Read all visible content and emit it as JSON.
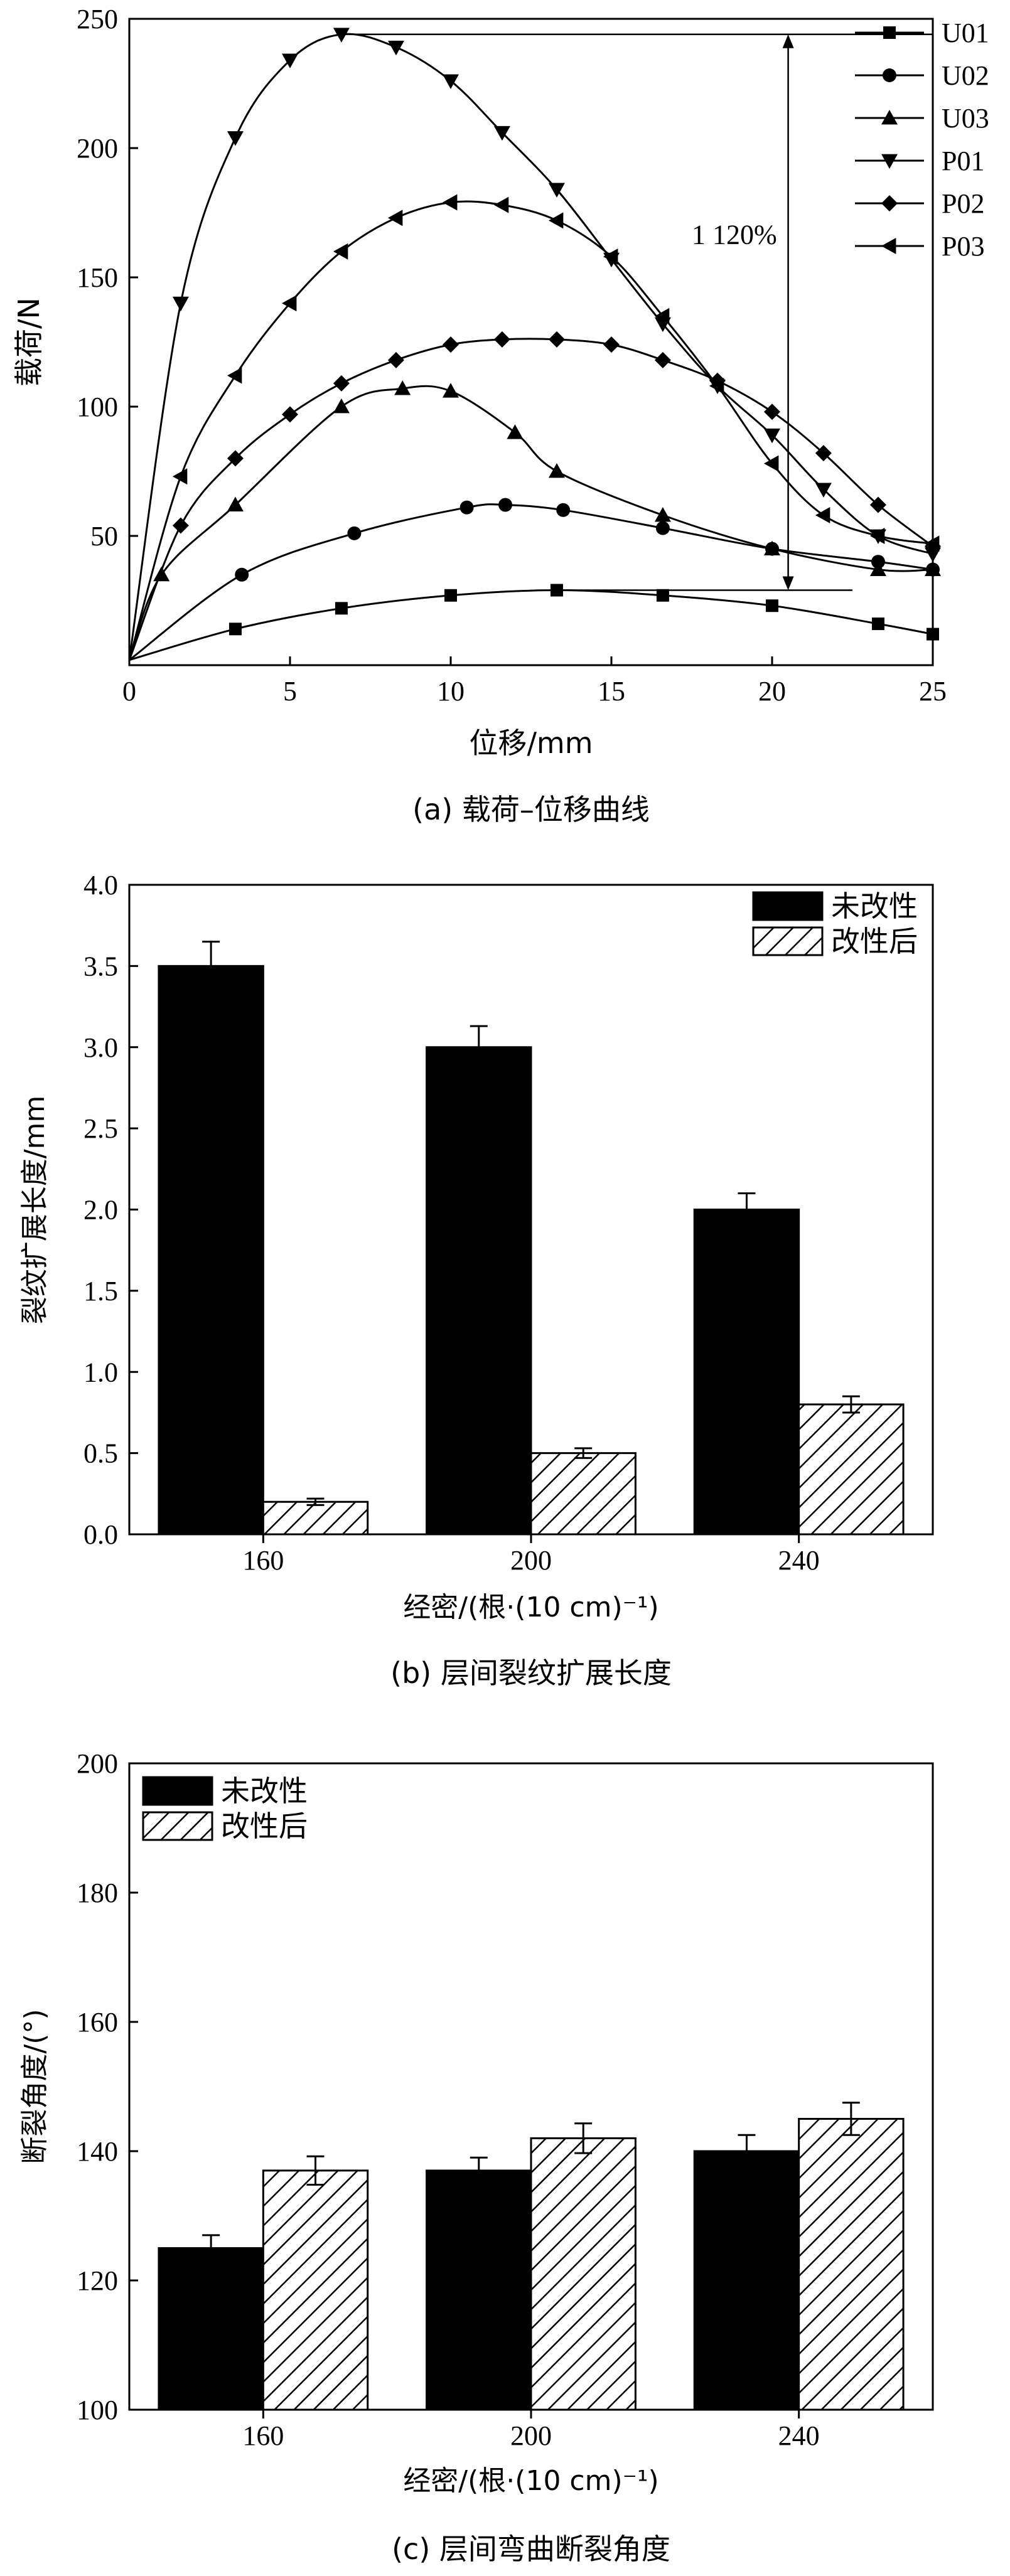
{
  "chart_data": [
    {
      "type": "line",
      "caption": "(a) 载荷–位移曲线",
      "xlabel": "位移/mm",
      "ylabel": "载荷/N",
      "xlim": [
        0,
        25
      ],
      "ylim": [
        0,
        250
      ],
      "x_ticks": [
        0,
        5,
        10,
        15,
        20,
        25
      ],
      "y_ticks": [
        50,
        100,
        150,
        200,
        250
      ],
      "legend_position": "top-right",
      "annotation": "1 120%",
      "series": [
        {
          "name": "U01",
          "marker": "square",
          "points": [
            [
              0,
              2
            ],
            [
              3.3,
              14
            ],
            [
              6.6,
              22
            ],
            [
              10,
              27
            ],
            [
              13.3,
              29
            ],
            [
              16.6,
              27
            ],
            [
              20,
              23
            ],
            [
              23.3,
              16
            ],
            [
              25,
              12
            ]
          ]
        },
        {
          "name": "U02",
          "marker": "circle",
          "points": [
            [
              0,
              2
            ],
            [
              3.5,
              35
            ],
            [
              7,
              51
            ],
            [
              10.5,
              61
            ],
            [
              11.7,
              62
            ],
            [
              13.5,
              60
            ],
            [
              16.6,
              53
            ],
            [
              20,
              45
            ],
            [
              23.3,
              40
            ],
            [
              25,
              37
            ]
          ]
        },
        {
          "name": "U03",
          "marker": "triangle-up",
          "points": [
            [
              0,
              2
            ],
            [
              1,
              35
            ],
            [
              3.3,
              62
            ],
            [
              6.6,
              100
            ],
            [
              8.5,
              107
            ],
            [
              10,
              106
            ],
            [
              12,
              90
            ],
            [
              13.3,
              75
            ],
            [
              16.6,
              58
            ],
            [
              20,
              45
            ],
            [
              23.3,
              37
            ],
            [
              25,
              37
            ]
          ]
        },
        {
          "name": "P01",
          "marker": "triangle-down",
          "points": [
            [
              0,
              2
            ],
            [
              1.6,
              140
            ],
            [
              3.3,
              204
            ],
            [
              5,
              234
            ],
            [
              6.6,
              244
            ],
            [
              8.3,
              239
            ],
            [
              10,
              226
            ],
            [
              11.6,
              206
            ],
            [
              13.3,
              184
            ],
            [
              15,
              157
            ],
            [
              16.6,
              132
            ],
            [
              18.3,
              108
            ],
            [
              20,
              89
            ],
            [
              21.6,
              68
            ],
            [
              23.3,
              50
            ],
            [
              25,
              43
            ]
          ]
        },
        {
          "name": "P02",
          "marker": "diamond",
          "points": [
            [
              0,
              2
            ],
            [
              1.6,
              54
            ],
            [
              3.3,
              80
            ],
            [
              5,
              97
            ],
            [
              6.6,
              109
            ],
            [
              8.3,
              118
            ],
            [
              10,
              124
            ],
            [
              11.6,
              126
            ],
            [
              13.3,
              126
            ],
            [
              15,
              124
            ],
            [
              16.6,
              118
            ],
            [
              18.3,
              110
            ],
            [
              20,
              98
            ],
            [
              21.6,
              82
            ],
            [
              23.3,
              62
            ],
            [
              25,
              46
            ]
          ]
        },
        {
          "name": "P03",
          "marker": "triangle-left",
          "points": [
            [
              0,
              2
            ],
            [
              1.6,
              73
            ],
            [
              3.3,
              112
            ],
            [
              5,
              140
            ],
            [
              6.6,
              160
            ],
            [
              8.3,
              173
            ],
            [
              10,
              179
            ],
            [
              11.6,
              178
            ],
            [
              13.3,
              172
            ],
            [
              15,
              158
            ],
            [
              16.6,
              135
            ],
            [
              18.3,
              108
            ],
            [
              20,
              78
            ],
            [
              21.6,
              58
            ],
            [
              23.3,
              50
            ],
            [
              25,
              47
            ]
          ]
        }
      ]
    },
    {
      "type": "bar",
      "caption": "(b) 层间裂纹扩展长度",
      "xlabel": "经密/(根·(10 cm)⁻¹)",
      "ylabel": "裂纹扩展长度/mm",
      "ylim": [
        0,
        4.0
      ],
      "y_ticks": [
        "0.0",
        "0.5",
        "1.0",
        "1.5",
        "2.0",
        "2.5",
        "3.0",
        "3.5",
        "4.0"
      ],
      "legend_position": "top-right",
      "categories": [
        "160",
        "200",
        "240"
      ],
      "series": [
        {
          "name": "未改性",
          "fill": "solid",
          "values": [
            3.5,
            3.0,
            2.0
          ],
          "errors": [
            0.15,
            0.13,
            0.1
          ]
        },
        {
          "name": "改性后",
          "fill": "hatch",
          "values": [
            0.2,
            0.5,
            0.8
          ],
          "errors": [
            0.02,
            0.03,
            0.05
          ]
        }
      ]
    },
    {
      "type": "bar",
      "caption": "(c) 层间弯曲断裂角度",
      "xlabel": "经密/(根·(10 cm)⁻¹)",
      "ylabel": "断裂角度/(°)",
      "ylim": [
        100,
        200
      ],
      "y_ticks": [
        "100",
        "120",
        "140",
        "160",
        "180",
        "200"
      ],
      "legend_position": "top-left",
      "categories": [
        "160",
        "200",
        "240"
      ],
      "series": [
        {
          "name": "未改性",
          "fill": "solid",
          "values": [
            125,
            137,
            140
          ],
          "errors": [
            2,
            2,
            2.5
          ]
        },
        {
          "name": "改性后",
          "fill": "hatch",
          "values": [
            137,
            142,
            145
          ],
          "errors": [
            2.2,
            2.3,
            2.5
          ]
        }
      ]
    }
  ]
}
